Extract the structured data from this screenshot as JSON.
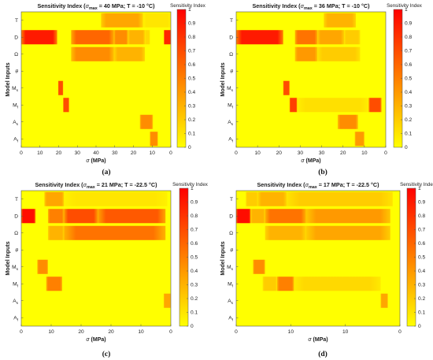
{
  "palette": {
    "low": "#ffff00",
    "high": "#ff0000"
  },
  "chart_data": [
    {
      "type": "heatmap",
      "panel_label": "(a)",
      "title_prefix": "Sensitivity Index (",
      "title_sigma": "σ",
      "title_sub": "max",
      "title_suffix": " =  40 MPa; T = -10 °C)",
      "ylabel": "Model Inputs",
      "xlabel": "σ (MPa)",
      "rows": [
        "T",
        "D",
        "Ω",
        "θ",
        "Ms",
        "Mf",
        "As",
        "Af"
      ],
      "x_ticks": [
        "0",
        "10",
        "20",
        "30",
        "40",
        "30",
        "20",
        "10",
        "0"
      ],
      "x_range": [
        0,
        150
      ],
      "colorbar": {
        "title": "Sensitivity Index",
        "ticks": [
          "0",
          "0.1",
          "0.2",
          "0.3",
          "0.4",
          "0.5",
          "0.6",
          "0.7",
          "0.8",
          "0.9",
          "1"
        ],
        "range": [
          0,
          1
        ]
      },
      "cells": [
        {
          "row": 0,
          "x0": 80,
          "x1": 122,
          "value": 0.35
        },
        {
          "row": 0,
          "x0": 122,
          "x1": 150,
          "value": 0.1
        },
        {
          "row": 1,
          "x0": 0,
          "x1": 36,
          "value": 0.9
        },
        {
          "row": 1,
          "x0": 50,
          "x1": 93,
          "value": 0.6
        },
        {
          "row": 1,
          "x0": 93,
          "x1": 107,
          "value": 0.45
        },
        {
          "row": 1,
          "x0": 107,
          "x1": 124,
          "value": 0.3
        },
        {
          "row": 1,
          "x0": 124,
          "x1": 129,
          "value": 0.15
        },
        {
          "row": 1,
          "x0": 143,
          "x1": 150,
          "value": 0.85
        },
        {
          "row": 2,
          "x0": 50,
          "x1": 93,
          "value": 0.45
        },
        {
          "row": 2,
          "x0": 93,
          "x1": 124,
          "value": 0.3
        },
        {
          "row": 4,
          "x0": 37,
          "x1": 42,
          "value": 0.7
        },
        {
          "row": 5,
          "x0": 42,
          "x1": 48,
          "value": 0.7
        },
        {
          "row": 6,
          "x0": 119,
          "x1": 132,
          "value": 0.45
        },
        {
          "row": 7,
          "x0": 129,
          "x1": 137,
          "value": 0.45
        }
      ]
    },
    {
      "type": "heatmap",
      "panel_label": "(b)",
      "title_prefix": "Sensitivity Index (",
      "title_sigma": "σ",
      "title_sub": "max",
      "title_suffix": " =  36 MPa; T = -10 °C)",
      "ylabel": "Model Inputs",
      "xlabel": "σ (MPa)",
      "rows": [
        "T",
        "D",
        "Ω",
        "θ",
        "Ms",
        "Mf",
        "As",
        "Af"
      ],
      "x_ticks": [
        "0",
        "10",
        "20",
        "30",
        "30",
        "20",
        "10",
        "0"
      ],
      "x_range": [
        0,
        140
      ],
      "colorbar": {
        "title": "Sensitivity Index",
        "ticks": [
          "0",
          "0.1",
          "0.2",
          "0.3",
          "0.4",
          "0.5",
          "0.6",
          "0.7",
          "0.8",
          "0.9",
          "1"
        ],
        "range": [
          0,
          1
        ]
      },
      "cells": [
        {
          "row": 0,
          "x0": 82,
          "x1": 112,
          "value": 0.3
        },
        {
          "row": 1,
          "x0": 0,
          "x1": 44,
          "value": 0.9
        },
        {
          "row": 1,
          "x0": 55,
          "x1": 76,
          "value": 0.55
        },
        {
          "row": 1,
          "x0": 76,
          "x1": 101,
          "value": 0.35
        },
        {
          "row": 1,
          "x0": 101,
          "x1": 116,
          "value": 0.2
        },
        {
          "row": 2,
          "x0": 55,
          "x1": 76,
          "value": 0.4
        },
        {
          "row": 2,
          "x0": 76,
          "x1": 116,
          "value": 0.2
        },
        {
          "row": 4,
          "x0": 44,
          "x1": 50,
          "value": 0.7
        },
        {
          "row": 5,
          "x0": 50,
          "x1": 57,
          "value": 0.75
        },
        {
          "row": 5,
          "x0": 57,
          "x1": 124,
          "value": 0.12
        },
        {
          "row": 5,
          "x0": 124,
          "x1": 136,
          "value": 0.7
        },
        {
          "row": 6,
          "x0": 95,
          "x1": 114,
          "value": 0.45
        },
        {
          "row": 7,
          "x0": 111,
          "x1": 120,
          "value": 0.4
        }
      ]
    },
    {
      "type": "heatmap",
      "panel_label": "(c)",
      "title_prefix": "Sensitivity Index (",
      "title_sigma": "σ",
      "title_sub": "max",
      "title_suffix": " =  21 MPa; T = -22.5 °C)",
      "ylabel": "Model Inputs",
      "xlabel": "σ (MPa)",
      "rows": [
        "T",
        "D",
        "Ω",
        "θ",
        "Ms",
        "Mf",
        "As",
        "Af"
      ],
      "x_ticks": [
        "0",
        "10",
        "20",
        "20",
        "10",
        "0"
      ],
      "x_range": [
        0,
        84
      ],
      "colorbar": {
        "title": "Sensitivity Index",
        "ticks": [
          "0",
          "0.1",
          "0.2",
          "0.3",
          "0.4",
          "0.5",
          "0.6",
          "0.7",
          "0.8",
          "0.9",
          "1"
        ],
        "range": [
          0,
          1
        ]
      },
      "cells": [
        {
          "row": 0,
          "x0": 13,
          "x1": 24,
          "value": 0.35
        },
        {
          "row": 0,
          "x0": 24,
          "x1": 82,
          "value": 0.1
        },
        {
          "row": 1,
          "x0": 0,
          "x1": 8,
          "value": 0.95
        },
        {
          "row": 1,
          "x0": 15,
          "x1": 24,
          "value": 0.5
        },
        {
          "row": 1,
          "x0": 24,
          "x1": 43,
          "value": 0.7
        },
        {
          "row": 1,
          "x0": 43,
          "x1": 81,
          "value": 0.65
        },
        {
          "row": 2,
          "x0": 15,
          "x1": 24,
          "value": 0.3
        },
        {
          "row": 2,
          "x0": 24,
          "x1": 81,
          "value": 0.55
        },
        {
          "row": 4,
          "x0": 9,
          "x1": 15,
          "value": 0.45
        },
        {
          "row": 5,
          "x0": 14,
          "x1": 23,
          "value": 0.5
        },
        {
          "row": 6,
          "x0": 80,
          "x1": 84,
          "value": 0.35
        }
      ]
    },
    {
      "type": "heatmap",
      "panel_label": "(d)",
      "title_prefix": "Sensitivity Index (",
      "title_sigma": "σ",
      "title_sub": "max",
      "title_suffix": " =  17 MPa; T = -22.5 °C)",
      "ylabel": "Model Inputs",
      "xlabel": "σ (MPa)",
      "rows": [
        "T",
        "D",
        "Ω",
        "θ",
        "Ms",
        "Mf",
        "As",
        "Af"
      ],
      "x_ticks": [
        "0",
        "10",
        "10",
        "0"
      ],
      "x_range": [
        0,
        68
      ],
      "colorbar": {
        "title": "Sensitivity Index",
        "ticks": [
          "0",
          "0.1",
          "0.2",
          "0.3",
          "0.4",
          "0.5",
          "0.6",
          "0.7",
          "0.8",
          "0.9",
          "1"
        ],
        "range": [
          0,
          1
        ]
      },
      "cells": [
        {
          "row": 0,
          "x0": 4,
          "x1": 9,
          "value": 0.2
        },
        {
          "row": 0,
          "x0": 9,
          "x1": 21,
          "value": 0.3
        },
        {
          "row": 0,
          "x0": 21,
          "x1": 65,
          "value": 0.2
        },
        {
          "row": 1,
          "x0": 0,
          "x1": 6,
          "value": 0.95
        },
        {
          "row": 1,
          "x0": 6,
          "x1": 12,
          "value": 0.3
        },
        {
          "row": 1,
          "x0": 12,
          "x1": 29,
          "value": 0.55
        },
        {
          "row": 1,
          "x0": 29,
          "x1": 64,
          "value": 0.4
        },
        {
          "row": 2,
          "x0": 12,
          "x1": 29,
          "value": 0.3
        },
        {
          "row": 2,
          "x0": 29,
          "x1": 64,
          "value": 0.35
        },
        {
          "row": 4,
          "x0": 7,
          "x1": 12,
          "value": 0.45
        },
        {
          "row": 5,
          "x0": 11,
          "x1": 17,
          "value": 0.2
        },
        {
          "row": 5,
          "x0": 17,
          "x1": 24,
          "value": 0.5
        },
        {
          "row": 5,
          "x0": 24,
          "x1": 60,
          "value": 0.15
        },
        {
          "row": 6,
          "x0": 60,
          "x1": 63,
          "value": 0.35
        }
      ]
    }
  ]
}
